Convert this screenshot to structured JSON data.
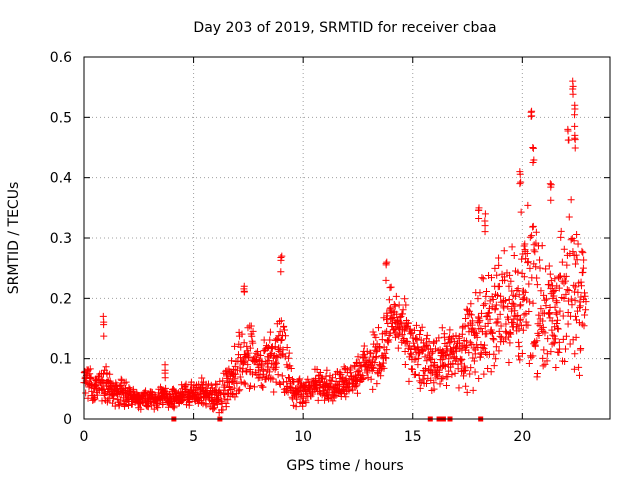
{
  "colors": {
    "series": "#ff0000",
    "grid": "#a0a0a0",
    "axis": "#000000"
  },
  "chart_data": {
    "type": "scatter",
    "title": "Day 203 of 2019, SRMTID for receiver cbaa",
    "xlabel": "GPS time / hours",
    "ylabel": "SRMTID / TECUs",
    "xlim": [
      0,
      24
    ],
    "ylim": [
      0,
      0.6
    ],
    "xticks": [
      0,
      5,
      10,
      15,
      20
    ],
    "yticks": [
      0,
      0.1,
      0.2,
      0.3,
      0.4,
      0.5,
      0.6
    ],
    "xtick_labels": [
      "0",
      "5",
      "10",
      "15",
      "20"
    ],
    "ytick_labels": [
      "0",
      "0.1",
      "0.2",
      "0.3",
      "0.4",
      "0.5",
      "0.6"
    ],
    "grid": true,
    "marker": "plus",
    "baseline_markers": {
      "marker": "square",
      "x": [
        4.1,
        6.2,
        15.8,
        16.2,
        16.4,
        16.7,
        18.1
      ],
      "y": 0
    },
    "series": [
      {
        "name": "SRMTID",
        "envelope": {
          "x": [
            0,
            0.5,
            1,
            1.5,
            2,
            2.5,
            3,
            3.5,
            4,
            4.5,
            5,
            5.5,
            6,
            6.5,
            7,
            7.5,
            8,
            8.5,
            9,
            9.5,
            10,
            10.5,
            11,
            11.5,
            12,
            12.5,
            13,
            13.5,
            14,
            14.5,
            15,
            15.5,
            16,
            16.5,
            17,
            17.5,
            18,
            18.5,
            19,
            19.5,
            20,
            20.5,
            21,
            21.5,
            22,
            22.5,
            22.9
          ],
          "mean": [
            0.07,
            0.05,
            0.06,
            0.045,
            0.04,
            0.035,
            0.03,
            0.035,
            0.035,
            0.04,
            0.04,
            0.04,
            0.035,
            0.05,
            0.08,
            0.11,
            0.09,
            0.1,
            0.12,
            0.05,
            0.04,
            0.06,
            0.05,
            0.06,
            0.06,
            0.08,
            0.09,
            0.1,
            0.17,
            0.14,
            0.11,
            0.1,
            0.09,
            0.11,
            0.1,
            0.12,
            0.15,
            0.17,
            0.18,
            0.19,
            0.2,
            0.21,
            0.18,
            0.17,
            0.2,
            0.23,
            0.18
          ],
          "spread": [
            0.035,
            0.03,
            0.04,
            0.03,
            0.02,
            0.02,
            0.02,
            0.02,
            0.02,
            0.02,
            0.025,
            0.03,
            0.03,
            0.04,
            0.06,
            0.07,
            0.05,
            0.06,
            0.08,
            0.03,
            0.03,
            0.03,
            0.03,
            0.03,
            0.03,
            0.04,
            0.05,
            0.06,
            0.06,
            0.07,
            0.06,
            0.06,
            0.05,
            0.06,
            0.06,
            0.08,
            0.1,
            0.1,
            0.12,
            0.13,
            0.16,
            0.18,
            0.11,
            0.1,
            0.17,
            0.2,
            0.08
          ]
        },
        "notable_points": [
          {
            "x": 0.9,
            "y": 0.17
          },
          {
            "x": 3.7,
            "y": 0.09
          },
          {
            "x": 7.3,
            "y": 0.22
          },
          {
            "x": 9.0,
            "y": 0.27
          },
          {
            "x": 13.8,
            "y": 0.26
          },
          {
            "x": 18.0,
            "y": 0.35
          },
          {
            "x": 18.3,
            "y": 0.34
          },
          {
            "x": 20.4,
            "y": 0.51
          },
          {
            "x": 20.5,
            "y": 0.45
          },
          {
            "x": 19.9,
            "y": 0.41
          },
          {
            "x": 21.3,
            "y": 0.39
          },
          {
            "x": 22.1,
            "y": 0.48
          },
          {
            "x": 22.3,
            "y": 0.56
          },
          {
            "x": 22.4,
            "y": 0.52
          },
          {
            "x": 22.4,
            "y": 0.47
          }
        ]
      }
    ]
  }
}
